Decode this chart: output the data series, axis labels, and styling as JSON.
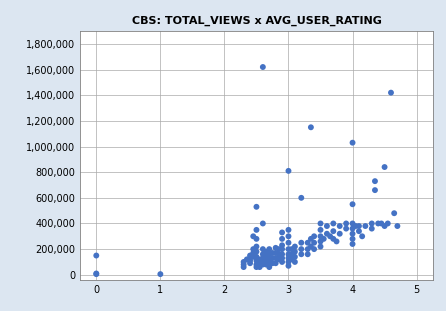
{
  "title": "CBS: TOTAL_VIEWS x AVG_USER_RATING",
  "xlim": [
    -0.25,
    5.25
  ],
  "ylim": [
    -40000,
    1900000
  ],
  "xticks": [
    0,
    1,
    2,
    3,
    4,
    5
  ],
  "yticks": [
    0,
    200000,
    400000,
    600000,
    800000,
    1000000,
    1200000,
    1400000,
    1600000,
    1800000
  ],
  "outer_background": "#1f3864",
  "inner_background": "#dce6f1",
  "plot_background": "#ffffff",
  "marker_color": "#4472c4",
  "marker_size": 18,
  "points": [
    [
      0.0,
      150000
    ],
    [
      0.0,
      10000
    ],
    [
      0.0,
      5000
    ],
    [
      1.0,
      5000
    ],
    [
      2.3,
      100000
    ],
    [
      2.3,
      80000
    ],
    [
      2.3,
      60000
    ],
    [
      2.35,
      120000
    ],
    [
      2.4,
      150000
    ],
    [
      2.4,
      130000
    ],
    [
      2.4,
      110000
    ],
    [
      2.4,
      90000
    ],
    [
      2.45,
      200000
    ],
    [
      2.45,
      170000
    ],
    [
      2.45,
      140000
    ],
    [
      2.45,
      300000
    ],
    [
      2.5,
      530000
    ],
    [
      2.5,
      350000
    ],
    [
      2.5,
      280000
    ],
    [
      2.5,
      220000
    ],
    [
      2.5,
      180000
    ],
    [
      2.5,
      140000
    ],
    [
      2.5,
      110000
    ],
    [
      2.5,
      80000
    ],
    [
      2.5,
      60000
    ],
    [
      2.55,
      120000
    ],
    [
      2.55,
      90000
    ],
    [
      2.55,
      60000
    ],
    [
      2.6,
      1620000
    ],
    [
      2.6,
      400000
    ],
    [
      2.6,
      200000
    ],
    [
      2.6,
      160000
    ],
    [
      2.6,
      130000
    ],
    [
      2.6,
      100000
    ],
    [
      2.6,
      80000
    ],
    [
      2.65,
      180000
    ],
    [
      2.65,
      140000
    ],
    [
      2.65,
      110000
    ],
    [
      2.65,
      80000
    ],
    [
      2.7,
      200000
    ],
    [
      2.7,
      160000
    ],
    [
      2.7,
      120000
    ],
    [
      2.7,
      90000
    ],
    [
      2.7,
      60000
    ],
    [
      2.75,
      170000
    ],
    [
      2.75,
      130000
    ],
    [
      2.75,
      90000
    ],
    [
      2.8,
      210000
    ],
    [
      2.8,
      170000
    ],
    [
      2.8,
      130000
    ],
    [
      2.8,
      90000
    ],
    [
      2.85,
      200000
    ],
    [
      2.85,
      160000
    ],
    [
      2.85,
      120000
    ],
    [
      2.9,
      330000
    ],
    [
      2.9,
      280000
    ],
    [
      2.9,
      230000
    ],
    [
      2.9,
      200000
    ],
    [
      2.9,
      160000
    ],
    [
      2.9,
      130000
    ],
    [
      2.9,
      100000
    ],
    [
      3.0,
      810000
    ],
    [
      3.0,
      350000
    ],
    [
      3.0,
      300000
    ],
    [
      3.0,
      250000
    ],
    [
      3.0,
      200000
    ],
    [
      3.0,
      160000
    ],
    [
      3.0,
      130000
    ],
    [
      3.0,
      100000
    ],
    [
      3.0,
      70000
    ],
    [
      3.05,
      200000
    ],
    [
      3.05,
      160000
    ],
    [
      3.05,
      120000
    ],
    [
      3.1,
      220000
    ],
    [
      3.1,
      180000
    ],
    [
      3.1,
      140000
    ],
    [
      3.1,
      100000
    ],
    [
      3.2,
      600000
    ],
    [
      3.2,
      250000
    ],
    [
      3.2,
      200000
    ],
    [
      3.2,
      160000
    ],
    [
      3.3,
      250000
    ],
    [
      3.3,
      200000
    ],
    [
      3.3,
      160000
    ],
    [
      3.35,
      1150000
    ],
    [
      3.35,
      280000
    ],
    [
      3.35,
      220000
    ],
    [
      3.4,
      300000
    ],
    [
      3.4,
      250000
    ],
    [
      3.4,
      200000
    ],
    [
      3.5,
      400000
    ],
    [
      3.5,
      350000
    ],
    [
      3.5,
      300000
    ],
    [
      3.5,
      260000
    ],
    [
      3.5,
      220000
    ],
    [
      3.55,
      280000
    ],
    [
      3.6,
      380000
    ],
    [
      3.6,
      320000
    ],
    [
      3.65,
      300000
    ],
    [
      3.7,
      400000
    ],
    [
      3.7,
      340000
    ],
    [
      3.7,
      280000
    ],
    [
      3.75,
      260000
    ],
    [
      3.8,
      380000
    ],
    [
      3.8,
      320000
    ],
    [
      3.9,
      400000
    ],
    [
      3.9,
      360000
    ],
    [
      4.0,
      1030000
    ],
    [
      4.0,
      550000
    ],
    [
      4.0,
      400000
    ],
    [
      4.0,
      360000
    ],
    [
      4.0,
      320000
    ],
    [
      4.0,
      280000
    ],
    [
      4.0,
      240000
    ],
    [
      4.05,
      380000
    ],
    [
      4.1,
      380000
    ],
    [
      4.1,
      340000
    ],
    [
      4.15,
      300000
    ],
    [
      4.2,
      380000
    ],
    [
      4.3,
      400000
    ],
    [
      4.3,
      360000
    ],
    [
      4.35,
      730000
    ],
    [
      4.35,
      660000
    ],
    [
      4.4,
      400000
    ],
    [
      4.45,
      400000
    ],
    [
      4.5,
      840000
    ],
    [
      4.5,
      380000
    ],
    [
      4.55,
      400000
    ],
    [
      4.6,
      1420000
    ],
    [
      4.65,
      480000
    ],
    [
      4.7,
      380000
    ]
  ]
}
